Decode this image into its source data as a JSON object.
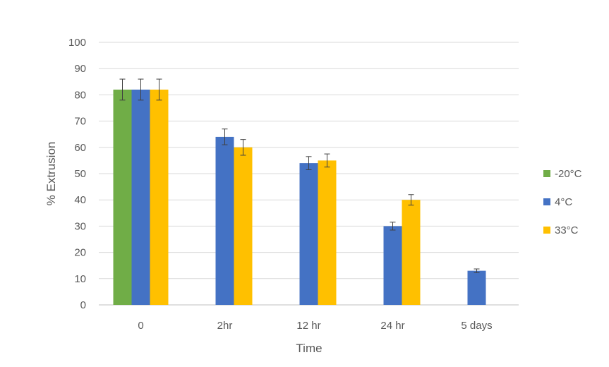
{
  "chart_data": {
    "type": "bar",
    "xlabel": "Time",
    "ylabel": "% Extrusion",
    "ylim": [
      0,
      100
    ],
    "yticks": [
      0,
      10,
      20,
      30,
      40,
      50,
      60,
      70,
      80,
      90,
      100
    ],
    "categories": [
      "0",
      "2hr",
      "12 hr",
      "24 hr",
      "5 days"
    ],
    "grid": true,
    "legend_position": "right",
    "series": [
      {
        "name": "-20°C",
        "color": "#70AD47",
        "values": [
          82,
          null,
          null,
          null,
          null
        ],
        "errors": [
          4,
          null,
          null,
          null,
          null
        ]
      },
      {
        "name": "4°C",
        "color": "#4472C4",
        "values": [
          82,
          64,
          54,
          30,
          13
        ],
        "errors": [
          4,
          3,
          2.5,
          1.5,
          0.7
        ]
      },
      {
        "name": "33°C",
        "color": "#FFC000",
        "values": [
          82,
          60,
          55,
          40,
          null
        ],
        "errors": [
          4,
          3,
          2.5,
          2,
          null
        ]
      }
    ]
  }
}
